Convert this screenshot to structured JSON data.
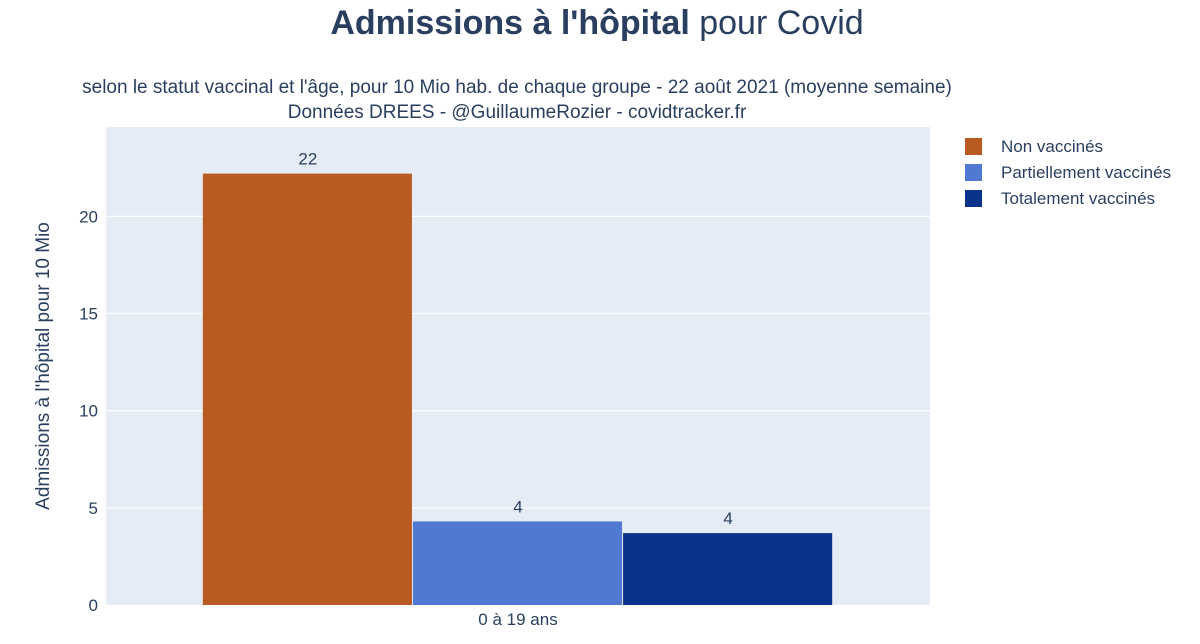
{
  "title": {
    "bold": "Admissions à l'hôpital",
    "rest": " pour Covid"
  },
  "subtitle": {
    "line1": "selon le statut vaccinal et l'âge, pour 10 Mio hab. de chaque groupe - 22 août 2021 (moyenne semaine)",
    "line2": "Données DREES - @GuillaumeRozier - covidtracker.fr"
  },
  "colors": {
    "plot_background": "#E5ECF6",
    "grid": "#ffffff",
    "text": "#2a3f5f"
  },
  "chart_data": {
    "type": "bar",
    "categories": [
      "0 à 19 ans"
    ],
    "series": [
      {
        "name": "Non vaccinés",
        "values": [
          22.2
        ],
        "label": "22",
        "color": "#B85A22"
      },
      {
        "name": "Partiellement vaccinés",
        "values": [
          4.3
        ],
        "label": "4",
        "color": "#5279D1"
      },
      {
        "name": "Totalement vaccinés",
        "values": [
          3.7
        ],
        "label": "4",
        "color": "#0B328A"
      }
    ],
    "xlabel": "",
    "ylabel": "Admissions à l'hôpital pour 10 Mio",
    "ylim": [
      0,
      24.6
    ],
    "yticks": [
      0,
      5,
      10,
      15,
      20
    ],
    "grid": true,
    "legend": "top-right"
  }
}
